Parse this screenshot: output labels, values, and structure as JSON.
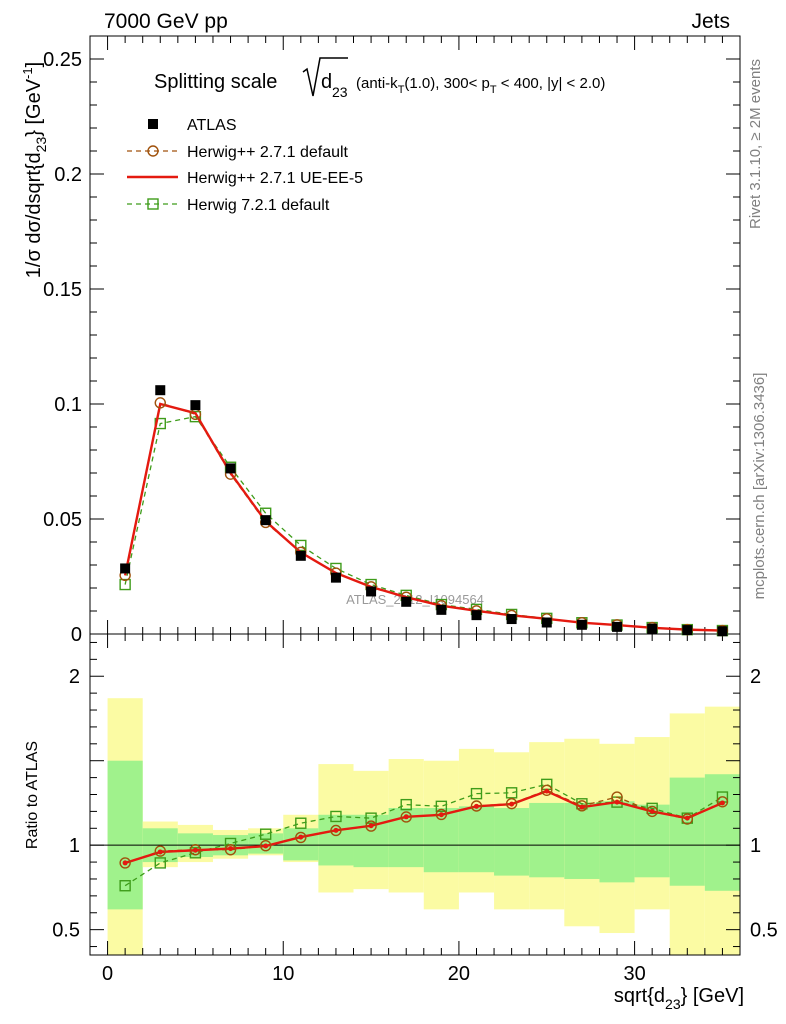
{
  "header": {
    "left": "7000 GeV pp",
    "right": "Jets"
  },
  "side_labels": {
    "rivet": "Rivet 3.1.10, ≥ 2M events",
    "mcplots": "mcplots.cern.ch [arXiv:1306.3436]"
  },
  "watermark": "ATLAS_2012_I1094564",
  "chart_data": [
    {
      "type": "line",
      "title": {
        "prefix": "Splitting scale",
        "sub": "23",
        "suffix": "(anti-k",
        "kt_sub": "T",
        "suffix2": "(1.0), 300< p",
        "pt_sub": "T",
        "suffix3": " < 400, |y| < 2.0)"
      },
      "ylabel": {
        "text": "1/σ dσ/dsqrt{d",
        "sub": "23",
        "mid": "} [GeV",
        "sup": "-1",
        "end": "]"
      },
      "xlim": [
        -1,
        36
      ],
      "ylim": [
        0,
        0.26
      ],
      "yticks": [
        0,
        0.05,
        0.1,
        0.15,
        0.2,
        0.25
      ],
      "ytick_labels": [
        "0",
        "0.05",
        "0.1",
        "0.15",
        "0.2",
        "0.25"
      ],
      "legend_position": "top-left",
      "x": [
        1,
        3,
        5,
        7,
        9,
        11,
        13,
        15,
        17,
        19,
        21,
        23,
        25,
        27,
        29,
        31,
        33,
        35
      ],
      "series": [
        {
          "name": "ATLAS",
          "style": "marker",
          "color": "#000000",
          "values": [
            0.0285,
            0.106,
            0.0995,
            0.072,
            0.0495,
            0.034,
            0.0245,
            0.0185,
            0.014,
            0.0105,
            0.0082,
            0.0065,
            0.005,
            0.004,
            0.0031,
            0.0023,
            0.0017,
            0.0012
          ]
        },
        {
          "name": "Herwig++ 2.7.1 default",
          "style": "dashed-circle",
          "color": "#a0520c",
          "values": [
            0.0255,
            0.1005,
            0.0955,
            0.0695,
            0.0485,
            0.0355,
            0.0265,
            0.0205,
            0.016,
            0.0123,
            0.0101,
            0.0081,
            0.0066,
            0.0049,
            0.004,
            0.0028,
            0.0019,
            0.0015
          ]
        },
        {
          "name": "Herwig++ 2.7.1 UE-EE-5",
          "style": "solid",
          "color": "#e41a10",
          "values": [
            0.0255,
            0.1,
            0.096,
            0.07,
            0.049,
            0.0355,
            0.0265,
            0.0205,
            0.016,
            0.0123,
            0.0101,
            0.0081,
            0.0066,
            0.0049,
            0.0039,
            0.0027,
            0.0019,
            0.0015
          ]
        },
        {
          "name": "Herwig 7.2.1 default",
          "style": "dashed-square",
          "color": "#3e9c1a",
          "values": [
            0.0215,
            0.0915,
            0.0945,
            0.0725,
            0.0525,
            0.0385,
            0.0285,
            0.0215,
            0.0168,
            0.0128,
            0.0107,
            0.0085,
            0.0068,
            0.0049,
            0.0039,
            0.0028,
            0.0019,
            0.0015
          ]
        }
      ]
    },
    {
      "type": "line",
      "ylabel": "Ratio to ATLAS",
      "xlabel": {
        "text": "sqrt{d",
        "sub": "23",
        "end": "} [GeV]"
      },
      "xlim": [
        -1,
        36
      ],
      "ylim": [
        0.35,
        2.25
      ],
      "xticks": [
        0,
        10,
        20,
        30
      ],
      "xtick_labels": [
        "0",
        "10",
        "20",
        "30"
      ],
      "yticks": [
        0.5,
        1,
        2
      ],
      "ytick_labels": [
        "0.5",
        "1",
        "2"
      ],
      "bins": [
        [
          0,
          2
        ],
        [
          2,
          4
        ],
        [
          4,
          6
        ],
        [
          6,
          8
        ],
        [
          8,
          10
        ],
        [
          10,
          12
        ],
        [
          12,
          14
        ],
        [
          14,
          16
        ],
        [
          16,
          18
        ],
        [
          18,
          20
        ],
        [
          20,
          22
        ],
        [
          22,
          24
        ],
        [
          24,
          26
        ],
        [
          26,
          28
        ],
        [
          28,
          30
        ],
        [
          30,
          32
        ],
        [
          32,
          34
        ],
        [
          34,
          36
        ]
      ],
      "band_stat": [
        [
          0.62,
          1.5
        ],
        [
          0.9,
          1.1
        ],
        [
          0.93,
          1.07
        ],
        [
          0.94,
          1.06
        ],
        [
          0.95,
          1.07
        ],
        [
          0.91,
          1.1
        ],
        [
          0.88,
          1.18
        ],
        [
          0.87,
          1.18
        ],
        [
          0.87,
          1.22
        ],
        [
          0.84,
          1.22
        ],
        [
          0.84,
          1.23
        ],
        [
          0.82,
          1.22
        ],
        [
          0.81,
          1.25
        ],
        [
          0.8,
          1.25
        ],
        [
          0.78,
          1.26
        ],
        [
          0.81,
          1.24
        ],
        [
          0.76,
          1.4
        ],
        [
          0.73,
          1.42
        ]
      ],
      "band_total": [
        [
          0.35,
          1.87
        ],
        [
          0.87,
          1.14
        ],
        [
          0.9,
          1.12
        ],
        [
          0.92,
          1.09
        ],
        [
          0.94,
          1.1
        ],
        [
          0.9,
          1.18
        ],
        [
          0.72,
          1.48
        ],
        [
          0.74,
          1.44
        ],
        [
          0.72,
          1.51
        ],
        [
          0.62,
          1.5
        ],
        [
          0.72,
          1.57
        ],
        [
          0.62,
          1.55
        ],
        [
          0.62,
          1.61
        ],
        [
          0.52,
          1.63
        ],
        [
          0.48,
          1.6
        ],
        [
          0.62,
          1.64
        ],
        [
          0.35,
          1.78
        ],
        [
          0.35,
          1.82
        ]
      ],
      "band_colors": {
        "stat": "#a0f28c",
        "total": "#fbfba3"
      },
      "series": [
        {
          "name": "Herwig++ 2.7.1 default",
          "color": "#a0520c",
          "values": [
            0.895,
            0.965,
            0.973,
            0.973,
            0.997,
            1.046,
            1.087,
            1.113,
            1.167,
            1.182,
            1.232,
            1.246,
            1.325,
            1.233,
            1.285,
            1.2,
            1.155,
            1.257
          ]
        },
        {
          "name": "Herwig++ 2.7.1 UE-EE-5",
          "color": "#e41a10",
          "values": [
            0.895,
            0.96,
            0.97,
            0.98,
            0.995,
            1.048,
            1.088,
            1.115,
            1.168,
            1.18,
            1.23,
            1.243,
            1.32,
            1.225,
            1.255,
            1.2,
            1.16,
            1.25
          ]
        },
        {
          "name": "Herwig 7.2.1 default",
          "color": "#3e9c1a",
          "values": [
            0.76,
            0.895,
            0.955,
            1.01,
            1.065,
            1.13,
            1.17,
            1.16,
            1.24,
            1.23,
            1.305,
            1.31,
            1.36,
            1.245,
            1.255,
            1.218,
            1.16,
            1.285
          ]
        }
      ]
    }
  ]
}
